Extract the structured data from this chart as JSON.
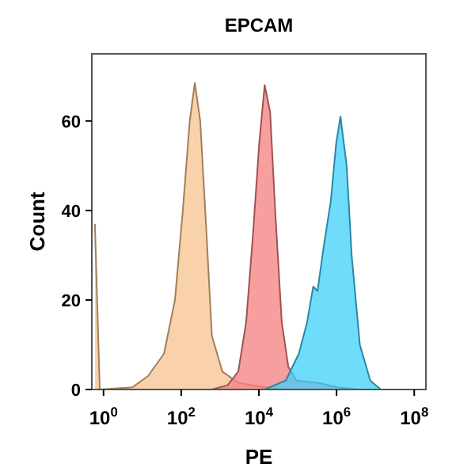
{
  "chart_data": {
    "type": "area",
    "title": "EPCAM",
    "xlabel": "PE",
    "ylabel": "Count",
    "log": "x",
    "xlim": [
      0.5,
      200000000
    ],
    "xticks": [
      {
        "value": 1,
        "label": "10$^{0}$"
      },
      {
        "value": 100,
        "label": "10$^{2}$"
      },
      {
        "value": 10000,
        "label": "10$^{4}$"
      },
      {
        "value": 1000000,
        "label": "10$^{6}$"
      },
      {
        "value": 100000000,
        "label": "10$^{8}$"
      }
    ],
    "ylim": [
      0,
      75
    ],
    "yticks": [
      0,
      20,
      40,
      60
    ],
    "grid": false,
    "series": [
      {
        "color": "#f7c38f",
        "x": [
          0.6,
          0.8,
          5.6,
          14,
          36,
          69,
          110,
          166,
          224,
          309,
          447,
          617,
          1150,
          2950,
          14000,
          93000,
          200000000
        ],
        "values": [
          37,
          0,
          0.5,
          3,
          8,
          20,
          40,
          60,
          68.5,
          60,
          35,
          12,
          4,
          1.5,
          0.5,
          0,
          0
        ]
      },
      {
        "color": "#f47f7f",
        "x": [
          617,
          1580,
          2950,
          4700,
          7100,
          10200,
          14100,
          19500,
          26300,
          38900,
          57500,
          93300,
          324000,
          1100000,
          4000000
        ],
        "values": [
          0,
          1,
          4,
          15,
          35,
          55,
          68,
          62,
          40,
          15,
          5,
          2,
          1.5,
          0.5,
          0
        ]
      },
      {
        "color": "#3fd0fb",
        "x": [
          14100,
          49000,
          107000,
          174000,
          251000,
          324000,
          468000,
          708000,
          977000,
          1260000,
          1820000,
          2450000,
          3980000,
          7400000,
          13800000
        ],
        "values": [
          0,
          2,
          8,
          15,
          23,
          22,
          32,
          42,
          55,
          61,
          50,
          30,
          10,
          2,
          0
        ]
      }
    ]
  }
}
